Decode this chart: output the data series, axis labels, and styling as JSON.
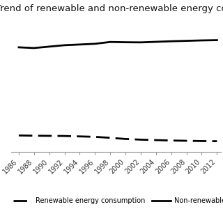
{
  "title": "Trend of renewable and non-renewable energy consumption in ...",
  "years": [
    1986,
    1988,
    1990,
    1992,
    1994,
    1996,
    1998,
    2000,
    2002,
    2004,
    2006,
    2008,
    2010,
    2012
  ],
  "non_renewable": [
    82.0,
    81.5,
    82.5,
    83.5,
    84.0,
    84.5,
    85.8,
    85.6,
    85.5,
    85.9,
    86.3,
    86.6,
    86.9,
    87.1
  ],
  "renewable": [
    19.5,
    19.3,
    19.2,
    19.1,
    18.8,
    18.5,
    17.8,
    17.0,
    16.5,
    16.2,
    15.9,
    15.7,
    15.5,
    15.4
  ],
  "non_renewable_color": "#000000",
  "renewable_color": "#000000",
  "background_color": "#ffffff",
  "title_fontsize": 9.5,
  "tick_fontsize": 7,
  "legend_fontsize": 7,
  "xlabel_rotation": 45,
  "xtick_years": [
    1986,
    1988,
    1990,
    1992,
    1994,
    1996,
    1998,
    2000,
    2002,
    2004,
    2006,
    2008,
    2010,
    2012
  ],
  "legend_renewable_label": "Renewable energy consumption",
  "legend_nonrenewable_label": "Non-renewable energy"
}
